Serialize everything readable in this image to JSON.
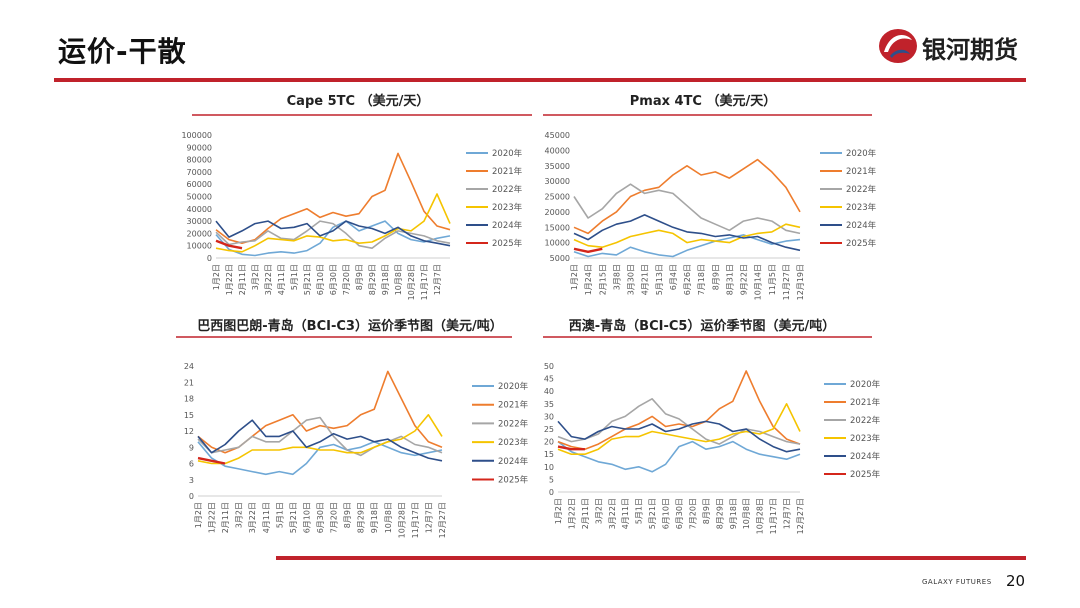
{
  "header": {
    "title": "运价-干散",
    "logo_text": "银河期货"
  },
  "footer": {
    "brand": "GALAXY FUTURES",
    "page": "20"
  },
  "colors": {
    "accent": "#c0222b",
    "2020": "#6fa8d6",
    "2021": "#ee7d2e",
    "2022": "#a6a6a6",
    "2023": "#f5c400",
    "2024": "#2e4f8a",
    "2025": "#d4261b"
  },
  "chart_data": [
    {
      "type": "line",
      "title": "Cape 5TC （美元/天）",
      "ylim": [
        0,
        100000
      ],
      "yticks": [
        "100000",
        "90000",
        "80000",
        "70000",
        "60000",
        "50000",
        "40000",
        "30000",
        "20000",
        "10000",
        "0"
      ],
      "x": [
        "1月2日",
        "1月22日",
        "2月11日",
        "3月2日",
        "3月22日",
        "4月11日",
        "5月1日",
        "5月21日",
        "6月10日",
        "6月30日",
        "7月20日",
        "8月9日",
        "8月29日",
        "9月18日",
        "10月8日",
        "10月28日",
        "11月17日",
        "12月7日",
        "12月27日"
      ],
      "xticks": [
        "1月2日",
        "1月22日",
        "2月11日",
        "3月2日",
        "3月22日",
        "4月11日",
        "5月1日",
        "5月21日",
        "6月10日",
        "6月30日",
        "7月20日",
        "8月9日",
        "8月29日",
        "9月18日",
        "10月8日",
        "10月28日",
        "11月17日",
        "12月7日"
      ],
      "series": [
        {
          "name": "2020年",
          "values": [
            19000,
            7000,
            3000,
            2000,
            4000,
            5000,
            4000,
            6000,
            12000,
            25000,
            30000,
            22000,
            26000,
            30000,
            20000,
            15000,
            13000,
            16000,
            18000
          ]
        },
        {
          "name": "2021年",
          "values": [
            23000,
            15000,
            12000,
            15000,
            24000,
            32000,
            36000,
            40000,
            33000,
            37000,
            34000,
            36000,
            50000,
            55000,
            85000,
            62000,
            38000,
            26000,
            23000
          ]
        },
        {
          "name": "2022年",
          "values": [
            21000,
            11000,
            13000,
            14000,
            22000,
            16000,
            15000,
            22000,
            30000,
            28000,
            20000,
            10000,
            8000,
            16000,
            22000,
            20000,
            18000,
            14000,
            12000
          ]
        },
        {
          "name": "2023年",
          "values": [
            8000,
            6000,
            5000,
            10000,
            16000,
            15000,
            14000,
            18000,
            17000,
            14000,
            15000,
            12000,
            13000,
            18000,
            24000,
            22000,
            30000,
            52000,
            28000
          ]
        },
        {
          "name": "2024年",
          "values": [
            30000,
            17000,
            22000,
            28000,
            30000,
            24000,
            25000,
            28000,
            18000,
            22000,
            30000,
            26000,
            24000,
            20000,
            25000,
            18000,
            14000,
            12000,
            10000
          ]
        },
        {
          "name": "2025年",
          "values": [
            14000,
            10000,
            8000,
            null,
            null,
            null,
            null,
            null,
            null,
            null,
            null,
            null,
            null,
            null,
            null,
            null,
            null,
            null,
            null
          ]
        }
      ]
    },
    {
      "type": "line",
      "title": "Pmax 4TC （美元/天）",
      "ylim": [
        5000,
        45000
      ],
      "yticks": [
        "45000",
        "40000",
        "35000",
        "30000",
        "25000",
        "20000",
        "15000",
        "10000",
        "5000"
      ],
      "x": [
        "1月2日",
        "1月24日",
        "2月15日",
        "3月8日",
        "3月30日",
        "4月21日",
        "5月13日",
        "6月4日",
        "6月26日",
        "7月18日",
        "8月9日",
        "8月31日",
        "9月22日",
        "10月14日",
        "11月5日",
        "11月27日",
        "12月19日"
      ],
      "xticks": [
        "1月2日",
        "1月24日",
        "2月15日",
        "3月8日",
        "3月30日",
        "4月21日",
        "5月13日",
        "6月4日",
        "6月26日",
        "7月18日",
        "8月9日",
        "8月31日",
        "9月22日",
        "10月14日",
        "11月5日",
        "11月27日",
        "12月19日"
      ],
      "series": [
        {
          "name": "2020年",
          "values": [
            7000,
            5500,
            6500,
            6000,
            8500,
            7000,
            6000,
            5500,
            7500,
            9000,
            10500,
            11500,
            12500,
            11000,
            9500,
            10500,
            11000
          ]
        },
        {
          "name": "2021年",
          "values": [
            15000,
            13000,
            17000,
            20000,
            25000,
            27000,
            28000,
            32000,
            35000,
            32000,
            33000,
            31000,
            34000,
            37000,
            33000,
            28000,
            20000
          ]
        },
        {
          "name": "2022年",
          "values": [
            25000,
            18000,
            21000,
            26000,
            29000,
            26000,
            27000,
            26000,
            22000,
            18000,
            16000,
            14000,
            17000,
            18000,
            17000,
            14000,
            13000
          ]
        },
        {
          "name": "2023年",
          "values": [
            11000,
            9000,
            8500,
            10000,
            12000,
            13000,
            14000,
            13000,
            10000,
            11000,
            10500,
            10000,
            12000,
            13000,
            13500,
            16000,
            15000
          ]
        },
        {
          "name": "2024年",
          "values": [
            13000,
            11000,
            14000,
            16000,
            17000,
            19000,
            17000,
            15000,
            13500,
            13000,
            12000,
            12500,
            11500,
            12000,
            10000,
            8500,
            7500
          ]
        },
        {
          "name": "2025年",
          "values": [
            8000,
            7000,
            8000,
            null,
            null,
            null,
            null,
            null,
            null,
            null,
            null,
            null,
            null,
            null,
            null,
            null,
            null
          ]
        }
      ]
    },
    {
      "type": "line",
      "title": "巴西图巴朗-青岛（BCI-C3）运价季节图（美元/吨）",
      "ylim": [
        0,
        24
      ],
      "yticks": [
        "24",
        "21",
        "18",
        "15",
        "12",
        "9",
        "6",
        "3",
        "0"
      ],
      "x": [
        "1月2日",
        "1月22日",
        "2月11日",
        "3月2日",
        "3月22日",
        "4月11日",
        "5月1日",
        "5月21日",
        "6月10日",
        "6月30日",
        "7月20日",
        "8月9日",
        "8月29日",
        "9月18日",
        "10月8日",
        "10月28日",
        "11月17日",
        "12月7日",
        "12月27日"
      ],
      "xticks": [
        "1月2日",
        "1月22日",
        "2月11日",
        "3月2日",
        "3月22日",
        "4月11日",
        "5月1日",
        "5月21日",
        "6月10日",
        "6月30日",
        "7月20日",
        "8月9日",
        "8月29日",
        "9月18日",
        "10月8日",
        "10月28日",
        "11月17日",
        "12月7日",
        "12月27日"
      ],
      "series": [
        {
          "name": "2020年",
          "values": [
            10000,
            7000,
            5500,
            5000,
            4500,
            4000,
            4500,
            4000,
            6000,
            9000,
            9500,
            8500,
            9000,
            10000,
            9000,
            8000,
            7500,
            8000,
            8500
          ]
        },
        {
          "name": "2021年",
          "values": [
            11000,
            9000,
            8000,
            9000,
            11000,
            13000,
            14000,
            15000,
            12000,
            13000,
            12500,
            13000,
            15000,
            16000,
            23000,
            18000,
            13000,
            10000,
            9000
          ]
        },
        {
          "name": "2022年",
          "values": [
            10500,
            8000,
            8500,
            9000,
            11000,
            10000,
            10000,
            12000,
            14000,
            14500,
            11000,
            8500,
            7500,
            9000,
            10000,
            11000,
            9500,
            9000,
            8000
          ]
        },
        {
          "name": "2023年",
          "values": [
            6500,
            6000,
            6000,
            7000,
            8500,
            8500,
            8500,
            9000,
            9000,
            8500,
            8500,
            8000,
            8000,
            9000,
            10000,
            10500,
            12000,
            15000,
            11000
          ]
        },
        {
          "name": "2024年",
          "values": [
            11000,
            8000,
            9500,
            12000,
            14000,
            11000,
            11000,
            12000,
            9000,
            10000,
            11500,
            10500,
            11000,
            10000,
            10500,
            9000,
            8000,
            7000,
            6500
          ]
        },
        {
          "name": "2025年",
          "values": [
            7000,
            6500,
            6000,
            null,
            null,
            null,
            null,
            null,
            null,
            null,
            null,
            null,
            null,
            null,
            null,
            null,
            null,
            null,
            null
          ]
        }
      ]
    },
    {
      "type": "line",
      "title": "西澳-青岛（BCI-C5）运价季节图（美元/吨）",
      "ylim": [
        0,
        50
      ],
      "yticks": [
        "50",
        "45",
        "40",
        "35",
        "30",
        "25",
        "20",
        "15",
        "10",
        "5",
        "0"
      ],
      "x": [
        "1月2日",
        "1月22日",
        "2月11日",
        "3月2日",
        "3月22日",
        "4月11日",
        "5月1日",
        "5月21日",
        "6月10日",
        "6月30日",
        "7月20日",
        "8月9日",
        "8月29日",
        "9月18日",
        "10月8日",
        "10月28日",
        "11月17日",
        "12月7日",
        "12月27日"
      ],
      "xticks": [
        "1月2日",
        "1月22日",
        "2月11日",
        "3月2日",
        "3月22日",
        "4月11日",
        "5月1日",
        "5月21日",
        "6月10日",
        "6月30日",
        "7月20日",
        "8月9日",
        "8月29日",
        "9月18日",
        "10月8日",
        "10月28日",
        "11月17日",
        "12月7日",
        "12月27日"
      ],
      "series": [
        {
          "name": "2020年",
          "values": [
            20000,
            16000,
            14000,
            12000,
            11000,
            9000,
            10000,
            8000,
            11000,
            18000,
            20000,
            17000,
            18000,
            20000,
            17000,
            15000,
            14000,
            13000,
            15000
          ]
        },
        {
          "name": "2021年",
          "values": [
            20000,
            18000,
            17000,
            19000,
            22000,
            25000,
            27000,
            30000,
            26000,
            27000,
            26000,
            28000,
            33000,
            36000,
            48000,
            36000,
            26000,
            21000,
            19000
          ]
        },
        {
          "name": "2022年",
          "values": [
            22000,
            20000,
            21000,
            23000,
            28000,
            30000,
            34000,
            37000,
            31000,
            29000,
            25000,
            21000,
            19000,
            22000,
            25000,
            24000,
            22000,
            20000,
            19000
          ]
        },
        {
          "name": "2023年",
          "values": [
            17000,
            15000,
            15000,
            17000,
            21000,
            22000,
            22000,
            24000,
            23000,
            22000,
            21000,
            20000,
            21000,
            23000,
            24000,
            23000,
            25000,
            35000,
            24000
          ]
        },
        {
          "name": "2024年",
          "values": [
            28000,
            22000,
            21000,
            24000,
            26000,
            25000,
            25000,
            27000,
            24000,
            25000,
            27000,
            28000,
            27000,
            24000,
            25000,
            21000,
            18000,
            16000,
            17000
          ]
        },
        {
          "name": "2025年",
          "values": [
            18000,
            17000,
            17000,
            null,
            null,
            null,
            null,
            null,
            null,
            null,
            null,
            null,
            null,
            null,
            null,
            null,
            null,
            null,
            null
          ]
        }
      ]
    }
  ]
}
